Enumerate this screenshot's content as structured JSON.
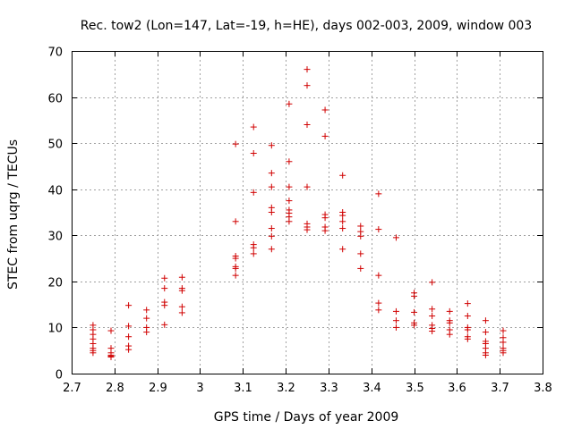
{
  "chart_data": {
    "type": "scatter",
    "title": "Rec. tow2 (Lon=147, Lat=-19, h=HE), days 002-003, 2009, window 003",
    "xlabel": "GPS time / Days of year 2009",
    "ylabel": "STEC from uqrg / TECUs",
    "xlim": [
      2.7,
      3.8
    ],
    "ylim": [
      0,
      70
    ],
    "xticks": [
      2.7,
      2.8,
      2.9,
      3.0,
      3.1,
      3.2,
      3.3,
      3.4,
      3.5,
      3.6,
      3.7,
      3.8
    ],
    "xtick_labels": [
      "2.7",
      "2.8",
      "2.9",
      "3",
      "3.1",
      "3.2",
      "3.3",
      "3.4",
      "3.5",
      "3.6",
      "3.7",
      "3.8"
    ],
    "yticks": [
      0,
      10,
      20,
      30,
      40,
      50,
      60,
      70
    ],
    "ytick_labels": [
      "0",
      "10",
      "20",
      "30",
      "40",
      "50",
      "60",
      "70"
    ],
    "grid": true,
    "marker": "+",
    "color": "#d00000",
    "series": [
      {
        "name": "STEC",
        "points": [
          [
            2.75,
            10.5
          ],
          [
            2.75,
            9.5
          ],
          [
            2.75,
            8.5
          ],
          [
            2.75,
            7.5
          ],
          [
            2.75,
            6.5
          ],
          [
            2.75,
            5.5
          ],
          [
            2.75,
            5.0
          ],
          [
            2.75,
            4.5
          ],
          [
            2.792,
            9.3
          ],
          [
            2.792,
            5.5
          ],
          [
            2.792,
            4.5
          ],
          [
            2.792,
            4.0
          ],
          [
            2.792,
            3.8
          ],
          [
            2.792,
            3.6
          ],
          [
            2.833,
            14.8
          ],
          [
            2.833,
            10.3
          ],
          [
            2.833,
            8.0
          ],
          [
            2.833,
            6.0
          ],
          [
            2.833,
            5.2
          ],
          [
            2.875,
            13.8
          ],
          [
            2.875,
            12.0
          ],
          [
            2.875,
            10.0
          ],
          [
            2.875,
            9.0
          ],
          [
            2.917,
            20.7
          ],
          [
            2.917,
            18.5
          ],
          [
            2.917,
            15.5
          ],
          [
            2.917,
            14.8
          ],
          [
            2.917,
            10.6
          ],
          [
            2.958,
            20.9
          ],
          [
            2.958,
            18.5
          ],
          [
            2.958,
            18.0
          ],
          [
            2.958,
            14.5
          ],
          [
            2.958,
            13.2
          ],
          [
            3.083,
            49.8
          ],
          [
            3.083,
            33.0
          ],
          [
            3.083,
            25.5
          ],
          [
            3.083,
            25.0
          ],
          [
            3.083,
            23.2
          ],
          [
            3.083,
            22.8
          ],
          [
            3.083,
            21.3
          ],
          [
            3.125,
            53.5
          ],
          [
            3.125,
            47.8
          ],
          [
            3.125,
            39.3
          ],
          [
            3.125,
            28.0
          ],
          [
            3.125,
            27.3
          ],
          [
            3.125,
            26.0
          ],
          [
            3.167,
            49.5
          ],
          [
            3.167,
            43.5
          ],
          [
            3.167,
            40.5
          ],
          [
            3.167,
            36.0
          ],
          [
            3.167,
            35.0
          ],
          [
            3.167,
            31.5
          ],
          [
            3.167,
            29.8
          ],
          [
            3.167,
            27.0
          ],
          [
            3.208,
            58.5
          ],
          [
            3.208,
            46.0
          ],
          [
            3.208,
            40.5
          ],
          [
            3.208,
            37.5
          ],
          [
            3.208,
            35.5
          ],
          [
            3.208,
            34.8
          ],
          [
            3.208,
            34.0
          ],
          [
            3.208,
            33.0
          ],
          [
            3.25,
            66.0
          ],
          [
            3.25,
            62.5
          ],
          [
            3.25,
            54.0
          ],
          [
            3.25,
            40.5
          ],
          [
            3.25,
            32.5
          ],
          [
            3.25,
            31.8
          ],
          [
            3.25,
            31.2
          ],
          [
            3.292,
            57.2
          ],
          [
            3.292,
            51.5
          ],
          [
            3.292,
            34.5
          ],
          [
            3.292,
            33.8
          ],
          [
            3.292,
            31.8
          ],
          [
            3.292,
            31.0
          ],
          [
            3.333,
            43.0
          ],
          [
            3.333,
            35.0
          ],
          [
            3.333,
            34.3
          ],
          [
            3.333,
            33.0
          ],
          [
            3.333,
            31.5
          ],
          [
            3.333,
            27.0
          ],
          [
            3.375,
            32.0
          ],
          [
            3.375,
            30.8
          ],
          [
            3.375,
            29.8
          ],
          [
            3.375,
            26.0
          ],
          [
            3.375,
            22.8
          ],
          [
            3.417,
            39.0
          ],
          [
            3.417,
            31.3
          ],
          [
            3.417,
            21.3
          ],
          [
            3.417,
            15.3
          ],
          [
            3.417,
            13.8
          ],
          [
            3.458,
            29.5
          ],
          [
            3.458,
            13.5
          ],
          [
            3.458,
            11.5
          ],
          [
            3.458,
            10.0
          ],
          [
            3.5,
            17.5
          ],
          [
            3.5,
            16.8
          ],
          [
            3.5,
            13.3
          ],
          [
            3.5,
            11.0
          ],
          [
            3.5,
            10.5
          ],
          [
            3.542,
            19.8
          ],
          [
            3.542,
            14.0
          ],
          [
            3.542,
            12.5
          ],
          [
            3.542,
            10.5
          ],
          [
            3.542,
            9.8
          ],
          [
            3.542,
            9.2
          ],
          [
            3.583,
            13.5
          ],
          [
            3.583,
            11.5
          ],
          [
            3.583,
            11.0
          ],
          [
            3.583,
            9.5
          ],
          [
            3.583,
            8.5
          ],
          [
            3.625,
            15.2
          ],
          [
            3.625,
            12.5
          ],
          [
            3.625,
            10.0
          ],
          [
            3.625,
            9.5
          ],
          [
            3.625,
            8.0
          ],
          [
            3.625,
            7.5
          ],
          [
            3.667,
            11.5
          ],
          [
            3.667,
            9.0
          ],
          [
            3.667,
            7.0
          ],
          [
            3.667,
            6.5
          ],
          [
            3.667,
            5.5
          ],
          [
            3.667,
            4.5
          ],
          [
            3.667,
            4.0
          ],
          [
            3.708,
            9.3
          ],
          [
            3.708,
            7.8
          ],
          [
            3.708,
            6.8
          ],
          [
            3.708,
            5.5
          ],
          [
            3.708,
            5.0
          ],
          [
            3.708,
            4.5
          ]
        ]
      }
    ]
  }
}
